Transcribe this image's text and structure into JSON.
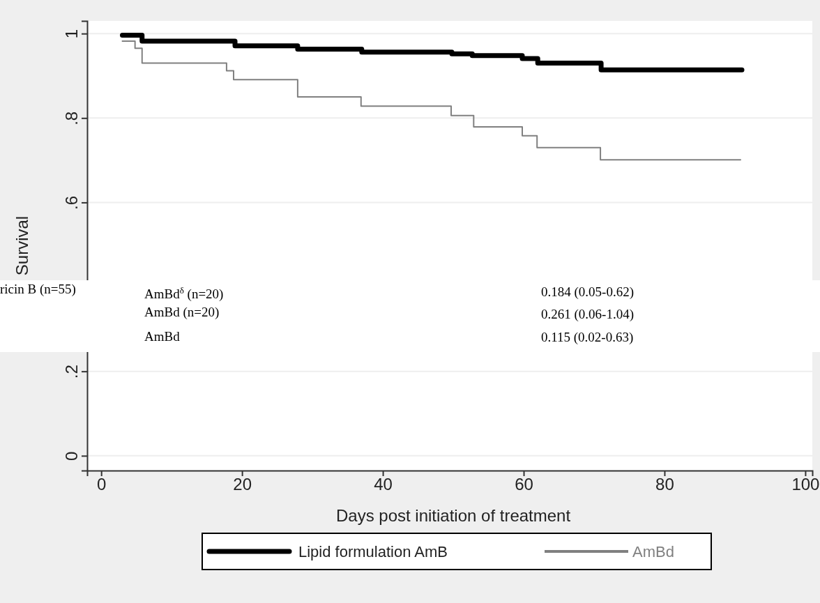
{
  "chart_data": {
    "type": "step",
    "xlabel": "Days post initiation of treatment",
    "ylabel": "Survival",
    "series": [
      {
        "name": "Lipid formulation AmB",
        "color": "#000000",
        "x": [
          3,
          5.8,
          19,
          27.9,
          37,
          49.8,
          52.7,
          59.8,
          62,
          71,
          91
        ],
        "values": [
          0.996,
          0.982,
          0.971,
          0.963,
          0.956,
          0.952,
          0.948,
          0.941,
          0.93,
          0.914,
          0.914
        ]
      },
      {
        "name": "AmBd",
        "color": "#808080",
        "x": [
          3,
          4.8,
          5.8,
          17.8,
          18.8,
          27.9,
          36.9,
          49.7,
          52.9,
          59.8,
          61.9,
          70.9,
          90.8
        ],
        "values": [
          0.982,
          0.965,
          0.93,
          0.912,
          0.891,
          0.85,
          0.828,
          0.806,
          0.779,
          0.758,
          0.73,
          0.701,
          0.701
        ]
      }
    ],
    "xlim": [
      -2,
      101
    ],
    "xticks": [
      0,
      20,
      40,
      60,
      80,
      100
    ],
    "ylim": [
      -0.035,
      1.03
    ],
    "yticks": [
      {
        "value": 0,
        "label": "0"
      },
      {
        "value": 0.2,
        "label": ".2"
      },
      {
        "value": 0.6,
        "label": ".6"
      },
      {
        "value": 0.8,
        "label": ".8"
      },
      {
        "value": 1,
        "label": "1"
      }
    ],
    "grid": "y",
    "legend": "bottom",
    "marker": "none",
    "line_style": "solid",
    "annotations": [
      "ricin B (n=55)",
      "AmBd$^{δ}$ (n=20)",
      "AmBd (n=20)",
      "AmBd",
      "0.184 (0.05-0.62)",
      "0.261 (0.06-1.04)",
      "0.115 (0.02-0.63)"
    ]
  }
}
